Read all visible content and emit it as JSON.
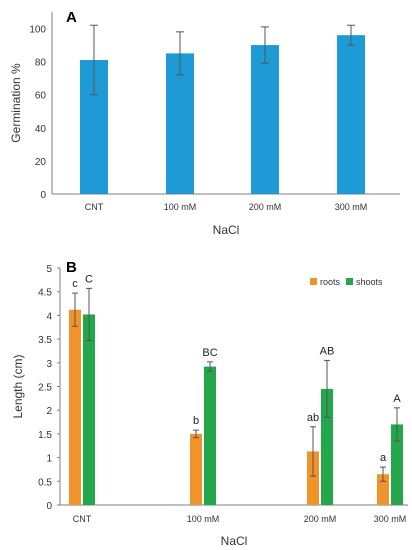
{
  "colors": {
    "germination": "#1e9ad6",
    "roots": "#f0932b",
    "shoots": "#22a84a",
    "axis": "#7f7f7f",
    "text": "#333333"
  },
  "chart_data": [
    {
      "type": "bar",
      "panel_label": "A",
      "title": "",
      "xlabel": "NaCl",
      "ylabel": "Germination %",
      "categories": [
        "CNT",
        "100 mM",
        "200 mM",
        "300 mM"
      ],
      "ylim": [
        0,
        110
      ],
      "yticks": [
        "0",
        "20",
        "40",
        "60",
        "80",
        "100"
      ],
      "grid": false,
      "series": [
        {
          "values": [
            81,
            85,
            90,
            96
          ],
          "error": [
            21,
            13,
            11,
            6
          ]
        }
      ]
    },
    {
      "type": "bar",
      "panel_label": "B",
      "title": "",
      "xlabel": "NaCl",
      "ylabel": "Length (cm)",
      "categories": [
        "CNT",
        "100 mM",
        "200 mM",
        "300 mM"
      ],
      "ylim": [
        0,
        5
      ],
      "yticks": [
        "0",
        "0.5",
        "1",
        "1.5",
        "2",
        "2.5",
        "3",
        "3.5",
        "4",
        "4.5",
        "5"
      ],
      "grid": false,
      "legend_position": "top-right",
      "series": [
        {
          "name": "roots",
          "values": [
            4.12,
            1.5,
            1.13,
            0.65
          ],
          "error": [
            0.35,
            0.08,
            0.52,
            0.15
          ],
          "letters": [
            "c",
            "b",
            "ab",
            "a"
          ]
        },
        {
          "name": "shoots",
          "values": [
            4.02,
            2.92,
            2.45,
            1.7
          ],
          "error": [
            0.55,
            0.1,
            0.6,
            0.35
          ],
          "letters": [
            "C",
            "BC",
            "AB",
            "A"
          ]
        }
      ]
    }
  ]
}
